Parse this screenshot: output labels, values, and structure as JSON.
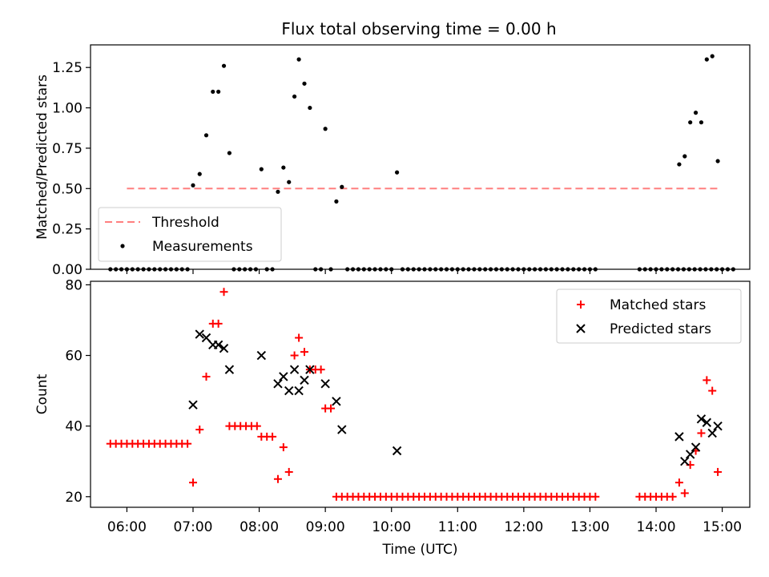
{
  "title": "Flux total observing time = 0.00 h",
  "chart_data": [
    {
      "type": "scatter",
      "ylabel": "Matched/Predicted stars",
      "xlim": [
        "05:27",
        "15:25"
      ],
      "ylim": [
        0,
        1.39
      ],
      "yticks": [
        "0.00",
        "0.25",
        "0.50",
        "0.75",
        "1.00",
        "1.25"
      ],
      "legend": {
        "placement": "lower-left",
        "entries": [
          "Threshold",
          "Measurements"
        ]
      },
      "threshold": {
        "name": "Threshold",
        "color": "#ff7f7f",
        "style": "dashed",
        "x_range": [
          "06:00",
          "14:58"
        ],
        "y": 0.5
      },
      "series": [
        {
          "name": "Measurements",
          "color": "#000000",
          "marker": "dot",
          "points": [
            [
              "05:45",
              0
            ],
            [
              "05:50",
              0
            ],
            [
              "05:55",
              0
            ],
            [
              "06:00",
              0
            ],
            [
              "06:05",
              0
            ],
            [
              "06:10",
              0
            ],
            [
              "06:15",
              0
            ],
            [
              "06:20",
              0
            ],
            [
              "06:25",
              0
            ],
            [
              "06:30",
              0
            ],
            [
              "06:35",
              0
            ],
            [
              "06:40",
              0
            ],
            [
              "06:45",
              0
            ],
            [
              "06:50",
              0
            ],
            [
              "06:55",
              0
            ],
            [
              "07:00",
              0.52
            ],
            [
              "07:06",
              0.59
            ],
            [
              "07:12",
              0.83
            ],
            [
              "07:18",
              1.1
            ],
            [
              "07:23",
              1.1
            ],
            [
              "07:28",
              1.26
            ],
            [
              "07:33",
              0.72
            ],
            [
              "07:37",
              0
            ],
            [
              "07:42",
              0
            ],
            [
              "07:47",
              0
            ],
            [
              "07:52",
              0
            ],
            [
              "07:57",
              0
            ],
            [
              "08:02",
              0.62
            ],
            [
              "08:07",
              0
            ],
            [
              "08:12",
              0
            ],
            [
              "08:17",
              0.48
            ],
            [
              "08:22",
              0.63
            ],
            [
              "08:27",
              0.54
            ],
            [
              "08:32",
              1.07
            ],
            [
              "08:36",
              1.3
            ],
            [
              "08:41",
              1.15
            ],
            [
              "08:46",
              1.0
            ],
            [
              "08:51",
              0
            ],
            [
              "08:56",
              0
            ],
            [
              "09:00",
              0.87
            ],
            [
              "09:05",
              0
            ],
            [
              "09:10",
              0.42
            ],
            [
              "09:15",
              0.51
            ],
            [
              "09:20",
              0
            ],
            [
              "09:25",
              0
            ],
            [
              "09:30",
              0
            ],
            [
              "09:35",
              0
            ],
            [
              "09:40",
              0
            ],
            [
              "09:45",
              0
            ],
            [
              "09:50",
              0
            ],
            [
              "09:55",
              0
            ],
            [
              "10:00",
              0
            ],
            [
              "10:05",
              0.6
            ],
            [
              "10:10",
              0
            ],
            [
              "10:15",
              0
            ],
            [
              "10:20",
              0
            ],
            [
              "10:25",
              0
            ],
            [
              "10:30",
              0
            ],
            [
              "10:35",
              0
            ],
            [
              "10:40",
              0
            ],
            [
              "10:45",
              0
            ],
            [
              "10:50",
              0
            ],
            [
              "10:55",
              0
            ],
            [
              "11:00",
              0
            ],
            [
              "11:05",
              0
            ],
            [
              "11:10",
              0
            ],
            [
              "11:15",
              0
            ],
            [
              "11:20",
              0
            ],
            [
              "11:25",
              0
            ],
            [
              "11:30",
              0
            ],
            [
              "11:35",
              0
            ],
            [
              "11:40",
              0
            ],
            [
              "11:45",
              0
            ],
            [
              "11:50",
              0
            ],
            [
              "11:55",
              0
            ],
            [
              "12:00",
              0
            ],
            [
              "12:05",
              0
            ],
            [
              "12:10",
              0
            ],
            [
              "12:15",
              0
            ],
            [
              "12:20",
              0
            ],
            [
              "12:25",
              0
            ],
            [
              "12:30",
              0
            ],
            [
              "12:35",
              0
            ],
            [
              "12:40",
              0
            ],
            [
              "12:45",
              0
            ],
            [
              "12:50",
              0
            ],
            [
              "12:55",
              0
            ],
            [
              "13:00",
              0
            ],
            [
              "13:05",
              0
            ],
            [
              "13:45",
              0
            ],
            [
              "13:50",
              0
            ],
            [
              "13:55",
              0
            ],
            [
              "14:00",
              0
            ],
            [
              "14:05",
              0
            ],
            [
              "14:10",
              0
            ],
            [
              "14:15",
              0
            ],
            [
              "14:20",
              0
            ],
            [
              "14:25",
              0
            ],
            [
              "14:30",
              0
            ],
            [
              "14:35",
              0
            ],
            [
              "14:40",
              0
            ],
            [
              "14:45",
              0
            ],
            [
              "14:50",
              0
            ],
            [
              "14:55",
              0
            ],
            [
              "15:00",
              0
            ],
            [
              "15:05",
              0
            ],
            [
              "15:10",
              0
            ],
            [
              "14:21",
              0.65
            ],
            [
              "14:26",
              0.7
            ],
            [
              "14:31",
              0.91
            ],
            [
              "14:36",
              0.97
            ],
            [
              "14:41",
              0.91
            ],
            [
              "14:46",
              1.3
            ],
            [
              "14:51",
              1.32
            ],
            [
              "14:56",
              0.67
            ]
          ]
        }
      ]
    },
    {
      "type": "scatter",
      "xlabel": "Time (UTC)",
      "ylabel": "Count",
      "xlim": [
        "05:27",
        "15:25"
      ],
      "ylim": [
        17,
        81
      ],
      "xticks": [
        "06:00",
        "07:00",
        "08:00",
        "09:00",
        "10:00",
        "11:00",
        "12:00",
        "13:00",
        "14:00",
        "15:00"
      ],
      "yticks": [
        "20",
        "40",
        "60",
        "80"
      ],
      "legend": {
        "placement": "top-right",
        "entries": [
          "Matched stars",
          "Predicted stars"
        ]
      },
      "series": [
        {
          "name": "Matched stars",
          "color": "#ff0000",
          "marker": "plus",
          "points": [
            [
              "05:45",
              35
            ],
            [
              "05:50",
              35
            ],
            [
              "05:55",
              35
            ],
            [
              "06:00",
              35
            ],
            [
              "06:05",
              35
            ],
            [
              "06:10",
              35
            ],
            [
              "06:15",
              35
            ],
            [
              "06:20",
              35
            ],
            [
              "06:25",
              35
            ],
            [
              "06:30",
              35
            ],
            [
              "06:35",
              35
            ],
            [
              "06:40",
              35
            ],
            [
              "06:45",
              35
            ],
            [
              "06:50",
              35
            ],
            [
              "06:55",
              35
            ],
            [
              "07:00",
              24
            ],
            [
              "07:06",
              39
            ],
            [
              "07:12",
              54
            ],
            [
              "07:18",
              69
            ],
            [
              "07:23",
              69
            ],
            [
              "07:28",
              78
            ],
            [
              "07:33",
              40
            ],
            [
              "07:38",
              40
            ],
            [
              "07:43",
              40
            ],
            [
              "07:48",
              40
            ],
            [
              "07:53",
              40
            ],
            [
              "07:58",
              40
            ],
            [
              "08:02",
              37
            ],
            [
              "08:07",
              37
            ],
            [
              "08:12",
              37
            ],
            [
              "08:17",
              25
            ],
            [
              "08:22",
              34
            ],
            [
              "08:27",
              27
            ],
            [
              "08:32",
              60
            ],
            [
              "08:36",
              65
            ],
            [
              "08:41",
              61
            ],
            [
              "08:46",
              56
            ],
            [
              "08:51",
              56
            ],
            [
              "08:56",
              56
            ],
            [
              "09:00",
              45
            ],
            [
              "09:05",
              45
            ],
            [
              "09:10",
              20
            ],
            [
              "09:15",
              20
            ],
            [
              "09:20",
              20
            ],
            [
              "09:25",
              20
            ],
            [
              "09:30",
              20
            ],
            [
              "09:35",
              20
            ],
            [
              "09:40",
              20
            ],
            [
              "09:45",
              20
            ],
            [
              "09:50",
              20
            ],
            [
              "09:55",
              20
            ],
            [
              "10:00",
              20
            ],
            [
              "10:05",
              20
            ],
            [
              "10:10",
              20
            ],
            [
              "10:15",
              20
            ],
            [
              "10:20",
              20
            ],
            [
              "10:25",
              20
            ],
            [
              "10:30",
              20
            ],
            [
              "10:35",
              20
            ],
            [
              "10:40",
              20
            ],
            [
              "10:45",
              20
            ],
            [
              "10:50",
              20
            ],
            [
              "10:55",
              20
            ],
            [
              "11:00",
              20
            ],
            [
              "11:05",
              20
            ],
            [
              "11:10",
              20
            ],
            [
              "11:15",
              20
            ],
            [
              "11:20",
              20
            ],
            [
              "11:25",
              20
            ],
            [
              "11:30",
              20
            ],
            [
              "11:35",
              20
            ],
            [
              "11:40",
              20
            ],
            [
              "11:45",
              20
            ],
            [
              "11:50",
              20
            ],
            [
              "11:55",
              20
            ],
            [
              "12:00",
              20
            ],
            [
              "12:05",
              20
            ],
            [
              "12:10",
              20
            ],
            [
              "12:15",
              20
            ],
            [
              "12:20",
              20
            ],
            [
              "12:25",
              20
            ],
            [
              "12:30",
              20
            ],
            [
              "12:35",
              20
            ],
            [
              "12:40",
              20
            ],
            [
              "12:45",
              20
            ],
            [
              "12:50",
              20
            ],
            [
              "12:55",
              20
            ],
            [
              "13:00",
              20
            ],
            [
              "13:05",
              20
            ],
            [
              "13:45",
              20
            ],
            [
              "13:50",
              20
            ],
            [
              "13:55",
              20
            ],
            [
              "14:00",
              20
            ],
            [
              "14:05",
              20
            ],
            [
              "14:10",
              20
            ],
            [
              "14:15",
              20
            ],
            [
              "14:21",
              24
            ],
            [
              "14:26",
              21
            ],
            [
              "14:31",
              29
            ],
            [
              "14:36",
              33
            ],
            [
              "14:41",
              38
            ],
            [
              "14:46",
              53
            ],
            [
              "14:51",
              50
            ],
            [
              "14:56",
              27
            ]
          ]
        },
        {
          "name": "Predicted stars",
          "color": "#000000",
          "marker": "x",
          "points": [
            [
              "07:00",
              46
            ],
            [
              "07:06",
              66
            ],
            [
              "07:12",
              65
            ],
            [
              "07:18",
              63
            ],
            [
              "07:23",
              63
            ],
            [
              "07:28",
              62
            ],
            [
              "07:33",
              56
            ],
            [
              "08:02",
              60
            ],
            [
              "08:17",
              52
            ],
            [
              "08:22",
              54
            ],
            [
              "08:27",
              50
            ],
            [
              "08:32",
              56
            ],
            [
              "08:36",
              50
            ],
            [
              "08:41",
              53
            ],
            [
              "08:46",
              56
            ],
            [
              "09:00",
              52
            ],
            [
              "09:10",
              47
            ],
            [
              "09:15",
              39
            ],
            [
              "10:05",
              33
            ],
            [
              "14:21",
              37
            ],
            [
              "14:26",
              30
            ],
            [
              "14:31",
              32
            ],
            [
              "14:36",
              34
            ],
            [
              "14:41",
              42
            ],
            [
              "14:46",
              41
            ],
            [
              "14:51",
              38
            ],
            [
              "14:56",
              40
            ]
          ]
        }
      ]
    }
  ]
}
